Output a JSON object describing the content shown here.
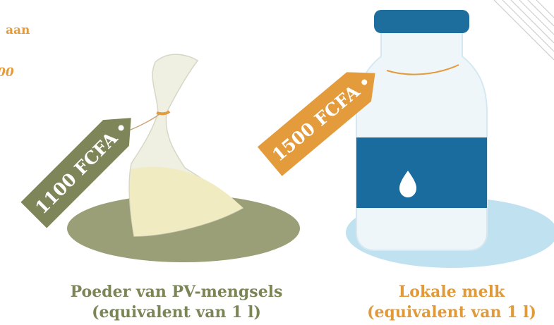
{
  "fragments": [
    "aan",
    "00"
  ],
  "products": [
    {
      "price": "1100 FCFA",
      "name": "Poeder van PV-mengsels",
      "unit": "(equivalent van 1 l)"
    },
    {
      "price": "1500 FCFA",
      "name": "Lokale melk",
      "unit": "(equivalent van 1 l)"
    }
  ]
}
